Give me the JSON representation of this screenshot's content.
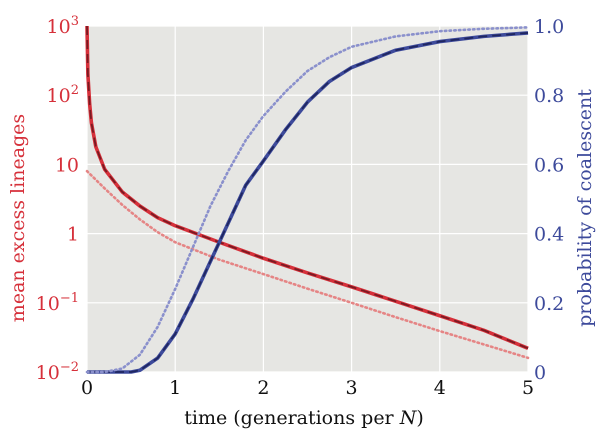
{
  "chart_data": {
    "type": "line",
    "xlabel": "time (generations per N)",
    "xlabel_parts": [
      "time (generations per ",
      "N",
      ")"
    ],
    "ylabel_left": "mean excess lineages",
    "ylabel_right": "probability of coalescent",
    "x_ticks": [
      "0",
      "1",
      "2",
      "3",
      "4",
      "5"
    ],
    "x_tick_values": [
      0,
      1,
      2,
      3,
      4,
      5
    ],
    "y_left_ticks": [
      {
        "value": 0.01,
        "base": "10",
        "exp": "−2"
      },
      {
        "value": 0.1,
        "base": "10",
        "exp": "−1"
      },
      {
        "value": 1,
        "base": "1",
        "exp": ""
      },
      {
        "value": 10,
        "base": "10",
        "exp": ""
      },
      {
        "value": 100,
        "base": "10",
        "exp": "2"
      },
      {
        "value": 1000,
        "base": "10",
        "exp": "3"
      }
    ],
    "y_right_ticks": [
      "0",
      "0.2",
      "0.4",
      "0.6",
      "0.8",
      "1.0"
    ],
    "y_right_tick_values": [
      0,
      0.2,
      0.4,
      0.6,
      0.8,
      1.0
    ],
    "xlim": [
      0,
      5
    ],
    "ylim_left": [
      0.01,
      1000
    ],
    "ylim_left_scale": "log",
    "ylim_right": [
      0,
      1
    ],
    "grid": true,
    "colors": {
      "left": "#d6303a",
      "left_light": "#e58585",
      "right": "#3d4a9b",
      "right_light": "#8a90cc",
      "background": "#e6e6e3",
      "grid": "#ffffff"
    },
    "series": [
      {
        "axis": "left",
        "style": "solid",
        "color": "#d6303a",
        "x": [
          0.0,
          0.01,
          0.03,
          0.05,
          0.1,
          0.2,
          0.4,
          0.6,
          0.8,
          1.0,
          1.5,
          2.0,
          2.5,
          3.0,
          3.5,
          4.0,
          4.5,
          5.0
        ],
        "y": [
          1000,
          200,
          75,
          40,
          18,
          8.5,
          4,
          2.5,
          1.7,
          1.3,
          0.75,
          0.44,
          0.27,
          0.17,
          0.105,
          0.065,
          0.04,
          0.022
        ]
      },
      {
        "axis": "left",
        "style": "dashed",
        "color": "#7a1a22",
        "x": [
          0.0,
          0.01,
          0.03,
          0.05,
          0.1,
          0.2,
          0.4,
          0.6,
          0.8,
          1.0,
          1.5,
          2.0,
          2.5,
          3.0,
          3.5,
          4.0,
          4.5,
          5.0
        ],
        "y": [
          1000,
          200,
          75,
          40,
          18,
          8.5,
          4,
          2.5,
          1.7,
          1.3,
          0.75,
          0.44,
          0.27,
          0.17,
          0.105,
          0.065,
          0.04,
          0.022
        ]
      },
      {
        "axis": "left",
        "style": "dotted",
        "color": "#e58585",
        "x": [
          0.0,
          0.2,
          0.4,
          0.6,
          0.8,
          1.0,
          1.5,
          2.0,
          2.5,
          3.0,
          3.5,
          4.0,
          4.5,
          5.0
        ],
        "y": [
          8,
          4.5,
          2.6,
          1.6,
          1.05,
          0.75,
          0.42,
          0.26,
          0.16,
          0.1,
          0.062,
          0.039,
          0.025,
          0.016
        ]
      },
      {
        "axis": "right",
        "style": "solid",
        "color": "#3d4a9b",
        "x": [
          0.0,
          0.3,
          0.5,
          0.6,
          0.8,
          1.0,
          1.2,
          1.4,
          1.6,
          1.8,
          2.0,
          2.25,
          2.5,
          2.75,
          3.0,
          3.5,
          4.0,
          4.5,
          5.0
        ],
        "y": [
          0.0,
          0.0,
          0.0,
          0.005,
          0.04,
          0.11,
          0.21,
          0.32,
          0.43,
          0.54,
          0.61,
          0.7,
          0.78,
          0.84,
          0.88,
          0.93,
          0.955,
          0.97,
          0.98
        ]
      },
      {
        "axis": "right",
        "style": "dashed",
        "color": "#1f2660",
        "x": [
          0.0,
          0.3,
          0.5,
          0.6,
          0.8,
          1.0,
          1.2,
          1.4,
          1.6,
          1.8,
          2.0,
          2.25,
          2.5,
          2.75,
          3.0,
          3.5,
          4.0,
          4.5,
          5.0
        ],
        "y": [
          0.0,
          0.0,
          0.0,
          0.005,
          0.04,
          0.11,
          0.21,
          0.32,
          0.43,
          0.54,
          0.61,
          0.7,
          0.78,
          0.84,
          0.88,
          0.93,
          0.955,
          0.97,
          0.98
        ]
      },
      {
        "axis": "right",
        "style": "dotted",
        "color": "#8a90cc",
        "x": [
          0.0,
          0.2,
          0.4,
          0.6,
          0.8,
          1.0,
          1.2,
          1.4,
          1.6,
          1.8,
          2.0,
          2.25,
          2.5,
          2.75,
          3.0,
          3.5,
          4.0,
          4.5,
          5.0
        ],
        "y": [
          0.0,
          0.0,
          0.01,
          0.05,
          0.13,
          0.24,
          0.36,
          0.48,
          0.58,
          0.67,
          0.74,
          0.81,
          0.87,
          0.91,
          0.94,
          0.97,
          0.985,
          0.992,
          0.996
        ]
      }
    ]
  }
}
